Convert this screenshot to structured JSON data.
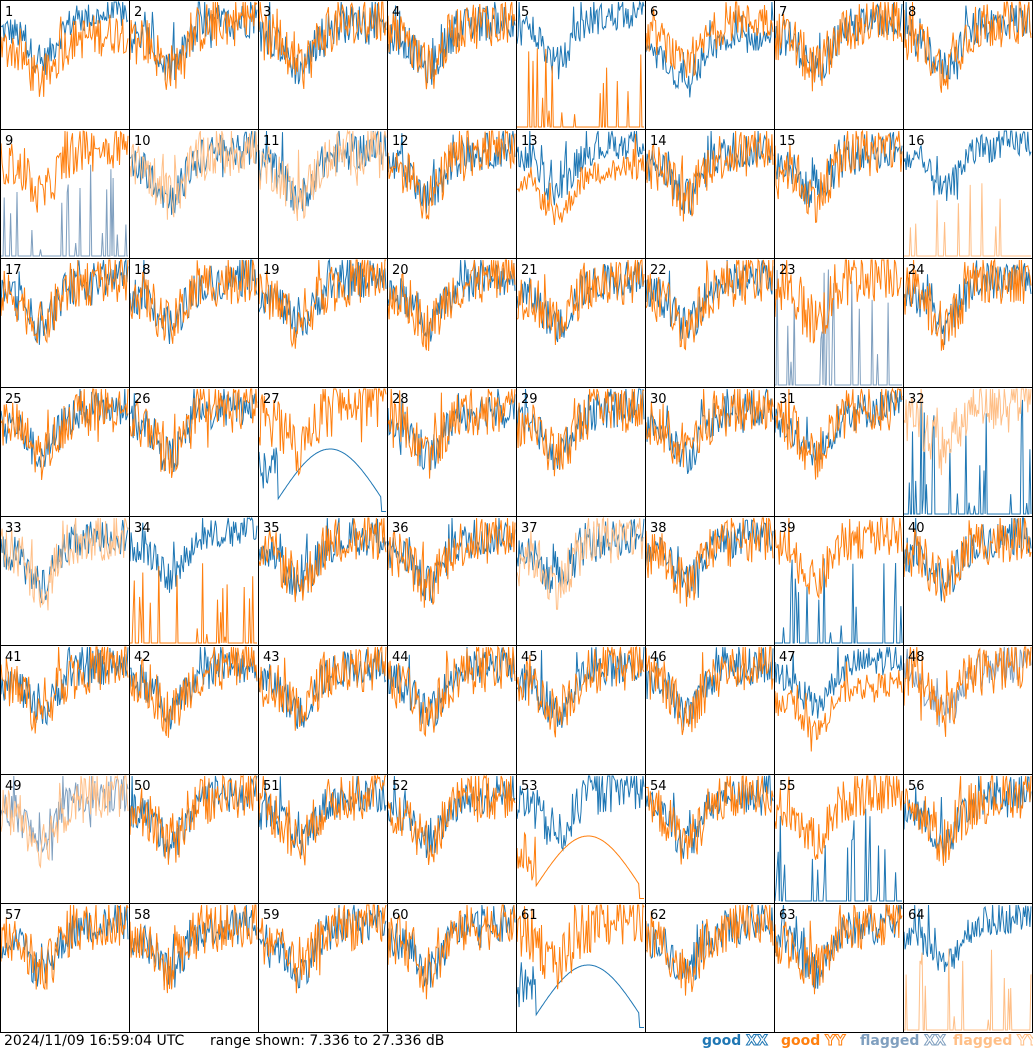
{
  "chart_data": {
    "type": "line",
    "description_units": "dB",
    "panel_count": 64,
    "panels": [
      {
        "label": "1",
        "xx": "good",
        "yy": "good",
        "shape": "dip-left"
      },
      {
        "label": "2",
        "xx": "good",
        "yy": "good",
        "shape": "normal"
      },
      {
        "label": "3",
        "xx": "good",
        "yy": "good",
        "shape": "normal"
      },
      {
        "label": "4",
        "xx": "good",
        "yy": "good",
        "shape": "normal"
      },
      {
        "label": "5",
        "xx": "good",
        "yy": "good",
        "shape": "spikes-yy"
      },
      {
        "label": "6",
        "xx": "good",
        "yy": "good",
        "shape": "dip-xx"
      },
      {
        "label": "7",
        "xx": "good",
        "yy": "good",
        "shape": "normal"
      },
      {
        "label": "8",
        "xx": "good",
        "yy": "good",
        "shape": "normal"
      },
      {
        "label": "9",
        "xx": "flagged",
        "yy": "good",
        "shape": "spikes-xx"
      },
      {
        "label": "10",
        "xx": "good",
        "yy": "flagged",
        "shape": "normal"
      },
      {
        "label": "11",
        "xx": "good",
        "yy": "flagged",
        "shape": "normal"
      },
      {
        "label": "12",
        "xx": "good",
        "yy": "good",
        "shape": "normal"
      },
      {
        "label": "13",
        "xx": "good",
        "yy": "good",
        "shape": "dip-yy"
      },
      {
        "label": "14",
        "xx": "good",
        "yy": "good",
        "shape": "normal"
      },
      {
        "label": "15",
        "xx": "good",
        "yy": "good",
        "shape": "normal"
      },
      {
        "label": "16",
        "xx": "good",
        "yy": "flagged",
        "shape": "spikes-yy"
      },
      {
        "label": "17",
        "xx": "good",
        "yy": "good",
        "shape": "normal"
      },
      {
        "label": "18",
        "xx": "good",
        "yy": "good",
        "shape": "normal"
      },
      {
        "label": "19",
        "xx": "good",
        "yy": "good",
        "shape": "normal"
      },
      {
        "label": "20",
        "xx": "good",
        "yy": "good",
        "shape": "normal"
      },
      {
        "label": "21",
        "xx": "good",
        "yy": "good",
        "shape": "normal"
      },
      {
        "label": "22",
        "xx": "good",
        "yy": "good",
        "shape": "normal"
      },
      {
        "label": "23",
        "xx": "flagged",
        "yy": "good",
        "shape": "spikes-xx-dense"
      },
      {
        "label": "24",
        "xx": "good",
        "yy": "good",
        "shape": "normal"
      },
      {
        "label": "25",
        "xx": "good",
        "yy": "good",
        "shape": "normal"
      },
      {
        "label": "26",
        "xx": "good",
        "yy": "good",
        "shape": "normal"
      },
      {
        "label": "27",
        "xx": "good",
        "yy": "good",
        "shape": "hump-xx"
      },
      {
        "label": "28",
        "xx": "good",
        "yy": "good",
        "shape": "normal"
      },
      {
        "label": "29",
        "xx": "good",
        "yy": "good",
        "shape": "normal"
      },
      {
        "label": "30",
        "xx": "good",
        "yy": "good",
        "shape": "normal"
      },
      {
        "label": "31",
        "xx": "good",
        "yy": "good",
        "shape": "normal"
      },
      {
        "label": "32",
        "xx": "good",
        "yy": "flagged",
        "shape": "spikes-xx-dense"
      },
      {
        "label": "33",
        "xx": "good",
        "yy": "flagged",
        "shape": "normal"
      },
      {
        "label": "34",
        "xx": "good",
        "yy": "good",
        "shape": "spikes-yy"
      },
      {
        "label": "35",
        "xx": "good",
        "yy": "good",
        "shape": "normal"
      },
      {
        "label": "36",
        "xx": "good",
        "yy": "good",
        "shape": "normal"
      },
      {
        "label": "37",
        "xx": "good",
        "yy": "flagged",
        "shape": "normal"
      },
      {
        "label": "38",
        "xx": "good",
        "yy": "good",
        "shape": "normal"
      },
      {
        "label": "39",
        "xx": "good",
        "yy": "good",
        "shape": "spikes-xx"
      },
      {
        "label": "40",
        "xx": "good",
        "yy": "good",
        "shape": "normal"
      },
      {
        "label": "41",
        "xx": "good",
        "yy": "good",
        "shape": "normal"
      },
      {
        "label": "42",
        "xx": "good",
        "yy": "good",
        "shape": "normal"
      },
      {
        "label": "43",
        "xx": "good",
        "yy": "good",
        "shape": "normal"
      },
      {
        "label": "44",
        "xx": "good",
        "yy": "good",
        "shape": "normal"
      },
      {
        "label": "45",
        "xx": "good",
        "yy": "good",
        "shape": "normal"
      },
      {
        "label": "46",
        "xx": "good",
        "yy": "good",
        "shape": "normal"
      },
      {
        "label": "47",
        "xx": "good",
        "yy": "good",
        "shape": "dip-yy"
      },
      {
        "label": "48",
        "xx": "flagged",
        "yy": "good",
        "shape": "normal"
      },
      {
        "label": "49",
        "xx": "flagged",
        "yy": "flagged",
        "shape": "normal"
      },
      {
        "label": "50",
        "xx": "good",
        "yy": "good",
        "shape": "normal"
      },
      {
        "label": "51",
        "xx": "good",
        "yy": "good",
        "shape": "normal"
      },
      {
        "label": "52",
        "xx": "good",
        "yy": "good",
        "shape": "normal"
      },
      {
        "label": "53",
        "xx": "good",
        "yy": "good",
        "shape": "hump-yy"
      },
      {
        "label": "54",
        "xx": "good",
        "yy": "good",
        "shape": "normal"
      },
      {
        "label": "55",
        "xx": "good",
        "yy": "good",
        "shape": "spikes-xx"
      },
      {
        "label": "56",
        "xx": "good",
        "yy": "good",
        "shape": "normal"
      },
      {
        "label": "57",
        "xx": "good",
        "yy": "good",
        "shape": "normal"
      },
      {
        "label": "58",
        "xx": "good",
        "yy": "good",
        "shape": "normal"
      },
      {
        "label": "59",
        "xx": "good",
        "yy": "good",
        "shape": "normal"
      },
      {
        "label": "60",
        "xx": "good",
        "yy": "good",
        "shape": "normal"
      },
      {
        "label": "61",
        "xx": "good",
        "yy": "good",
        "shape": "hump-xx"
      },
      {
        "label": "62",
        "xx": "good",
        "yy": "good",
        "shape": "normal"
      },
      {
        "label": "63",
        "xx": "good",
        "yy": "good",
        "shape": "normal"
      },
      {
        "label": "64",
        "xx": "good",
        "yy": "flagged",
        "shape": "spikes-yy"
      }
    ],
    "range_min_db": 7.336,
    "range_max_db": 27.336,
    "grid": false,
    "legend_placement": "bottom-right"
  },
  "footer": {
    "timestamp": "2024/11/09 16:59:04 UTC",
    "range_text": "range shown: 7.336 to 27.336 dB"
  },
  "legend": [
    {
      "prefix": "good",
      "pol": "XX",
      "color": "#1f77b4"
    },
    {
      "prefix": "good",
      "pol": "YY",
      "color": "#ff7f0e"
    },
    {
      "prefix": "flagged",
      "pol": "XX",
      "color": "#7f9fbf"
    },
    {
      "prefix": "flagged",
      "pol": "YY",
      "color": "#ffbf87"
    }
  ],
  "colors": {
    "good_xx": "#1f77b4",
    "good_yy": "#ff7f0e",
    "flagged_xx": "#7f9fbf",
    "flagged_yy": "#ffbf87"
  }
}
